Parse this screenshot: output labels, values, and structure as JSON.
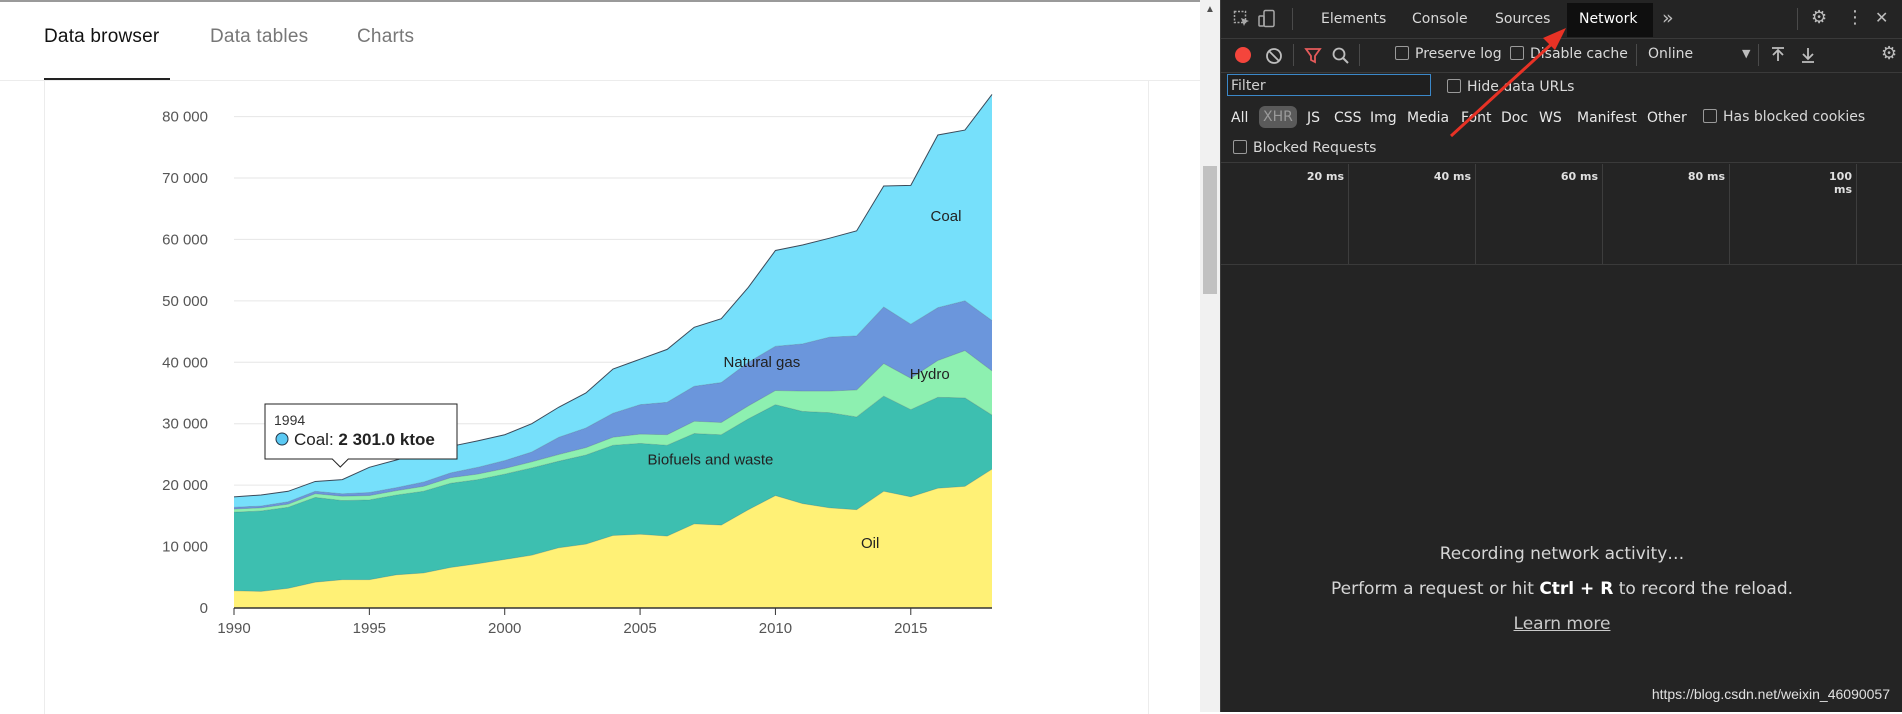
{
  "tabs": {
    "items": [
      {
        "label": "Data browser",
        "active": true
      },
      {
        "label": "Data tables",
        "active": false
      },
      {
        "label": "Charts",
        "active": false
      }
    ]
  },
  "chart_data": {
    "type": "area",
    "stacked": true,
    "x": [
      1990,
      1991,
      1992,
      1993,
      1994,
      1995,
      1996,
      1997,
      1998,
      1999,
      2000,
      2001,
      2002,
      2003,
      2004,
      2005,
      2006,
      2007,
      2008,
      2009,
      2010,
      2011,
      2012,
      2013,
      2014,
      2015,
      2016,
      2017,
      2018
    ],
    "xticks": [
      1990,
      1995,
      2000,
      2005,
      2010,
      2015
    ],
    "yticks": [
      0,
      10000,
      20000,
      30000,
      40000,
      50000,
      60000,
      70000,
      80000
    ],
    "ytick_labels": [
      "0",
      "10 000",
      "20 000",
      "30 000",
      "40 000",
      "50 000",
      "60 000",
      "70 000",
      "80 000"
    ],
    "ylim": [
      0,
      84000
    ],
    "xlim": [
      1990,
      2018
    ],
    "grid": true,
    "series": [
      {
        "name": "Oil",
        "color": "#fff176",
        "label_at": [
          2013.5,
          9800
        ],
        "values": [
          2800,
          2700,
          3200,
          4200,
          4600,
          4600,
          5400,
          5700,
          6600,
          7200,
          7900,
          8600,
          9800,
          10400,
          11800,
          12000,
          11700,
          13700,
          13500,
          16000,
          18300,
          17000,
          16300,
          16000,
          19000,
          18100,
          19500,
          19800,
          22600
        ]
      },
      {
        "name": "Biofuels and waste",
        "color": "#3dbfb0",
        "label_at": [
          2007.6,
          23400
        ],
        "values": [
          12800,
          13100,
          13200,
          13800,
          12900,
          13000,
          13000,
          13300,
          13700,
          13700,
          13900,
          14200,
          14100,
          14500,
          14700,
          14800,
          14800,
          14700,
          14700,
          14800,
          14800,
          15000,
          15500,
          15100,
          15500,
          14200,
          14800,
          14400,
          8800
        ]
      },
      {
        "name": "Hydro",
        "color": "#8df0b0",
        "label_at": [
          2015.7,
          37300
        ],
        "values": [
          500,
          500,
          500,
          600,
          700,
          700,
          700,
          800,
          900,
          900,
          900,
          1000,
          1100,
          1200,
          1300,
          1500,
          1700,
          2000,
          2000,
          2100,
          2300,
          3300,
          3500,
          4400,
          5300,
          5100,
          6000,
          7700,
          7200
        ]
      },
      {
        "name": "Natural gas",
        "color": "#6b96dc",
        "label_at": [
          2009.5,
          39200
        ],
        "values": [
          300,
          300,
          400,
          400,
          400,
          500,
          500,
          700,
          800,
          1100,
          1300,
          1600,
          2800,
          3200,
          3900,
          4800,
          5300,
          5700,
          6500,
          7100,
          7200,
          7700,
          8800,
          8800,
          9200,
          8800,
          8600,
          8100,
          8200
        ]
      },
      {
        "name": "Coal",
        "color": "#76e0fb",
        "label_at": [
          2016.3,
          63000
        ],
        "values": [
          1700,
          1800,
          1700,
          1600,
          2301,
          4100,
          4500,
          4900,
          4300,
          4300,
          4200,
          4600,
          4900,
          5700,
          7200,
          7400,
          8600,
          9600,
          10400,
          12200,
          15600,
          16100,
          16100,
          17100,
          19700,
          22600,
          28100,
          27800,
          36800
        ]
      }
    ],
    "tooltip": {
      "year": "1994",
      "series": "Coal",
      "value_text": "2 301.0 ktoe",
      "prefix": "Coal: ",
      "color": "#5bc9f3"
    }
  },
  "devtools": {
    "panels": [
      {
        "label": "Elements",
        "active": false
      },
      {
        "label": "Console",
        "active": false
      },
      {
        "label": "Sources",
        "active": false
      },
      {
        "label": "Network",
        "active": true
      }
    ],
    "more_glyph": "»",
    "settings_glyph": "⚙",
    "kebab_glyph": "⋮",
    "close_glyph": "✕",
    "preserve_log_label": "Preserve log",
    "disable_cache_label": "Disable cache",
    "throttle_value": "Online",
    "filter_placeholder": "Filter",
    "hide_data_urls_label": "Hide data URLs",
    "filter_types": [
      "All",
      "XHR",
      "JS",
      "CSS",
      "Img",
      "Media",
      "Font",
      "Doc",
      "WS",
      "Manifest",
      "Other"
    ],
    "selected_type": "XHR",
    "has_blocked_cookies_label": "Has blocked cookies",
    "blocked_requests_label": "Blocked Requests",
    "timeline_ticks": [
      "20 ms",
      "40 ms",
      "60 ms",
      "80 ms",
      "100 ms"
    ],
    "recording_text": "Recording network activity…",
    "perform_prefix": "Perform a request or hit ",
    "shortcut": "Ctrl + R",
    "perform_suffix": " to record the reload.",
    "learn_more": "Learn more",
    "record_color": "#f4453c",
    "filter_icon_color": "#e65b5b"
  },
  "watermark": "https://blog.csdn.net/weixin_46090057",
  "annotation_arrow_color": "#e83225"
}
